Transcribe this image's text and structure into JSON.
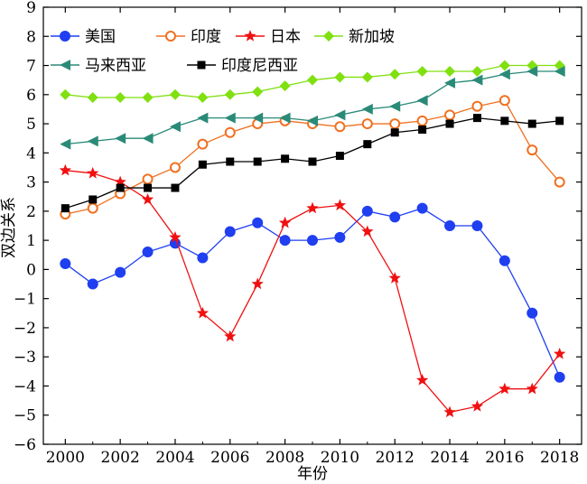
{
  "chart_data": {
    "type": "line",
    "title": "",
    "xlabel": "年份",
    "ylabel": "双边关系",
    "xlim": [
      1999.2,
      2018.8
    ],
    "ylim": [
      -6,
      9
    ],
    "x_ticks": [
      2000,
      2002,
      2004,
      2006,
      2008,
      2010,
      2012,
      2014,
      2016,
      2018
    ],
    "y_ticks": [
      -6,
      -5,
      -4,
      -3,
      -2,
      -1,
      0,
      1,
      2,
      3,
      4,
      5,
      6,
      7,
      8,
      9
    ],
    "grid": false,
    "legend": "top-left",
    "x": [
      2000,
      2001,
      2002,
      2003,
      2004,
      2005,
      2006,
      2007,
      2008,
      2009,
      2010,
      2011,
      2012,
      2013,
      2014,
      2015,
      2016,
      2017,
      2018
    ],
    "series": [
      {
        "name": "美国",
        "color": "#1f3ff0",
        "marker": "circle",
        "values": [
          0.2,
          -0.5,
          -0.1,
          0.6,
          0.9,
          0.4,
          1.3,
          1.6,
          1.0,
          1.0,
          1.1,
          2.0,
          1.8,
          2.1,
          1.5,
          1.5,
          0.3,
          -1.5,
          -3.7
        ]
      },
      {
        "name": "印度",
        "color": "#f07020",
        "marker": "circle-open",
        "values": [
          1.9,
          2.1,
          2.6,
          3.1,
          3.5,
          4.3,
          4.7,
          5.0,
          5.1,
          5.0,
          4.9,
          5.0,
          5.0,
          5.1,
          5.3,
          5.6,
          5.8,
          4.1,
          3.0
        ]
      },
      {
        "name": "日本",
        "color": "#f01010",
        "marker": "star",
        "values": [
          3.4,
          3.3,
          3.0,
          2.4,
          1.1,
          -1.5,
          -2.3,
          -0.5,
          1.6,
          2.1,
          2.2,
          1.3,
          -0.3,
          -3.8,
          -4.9,
          -4.7,
          -4.1,
          -4.1,
          -2.9
        ]
      },
      {
        "name": "新加坡",
        "color": "#80e010",
        "marker": "diamond",
        "values": [
          6.0,
          5.9,
          5.9,
          5.9,
          6.0,
          5.9,
          6.0,
          6.1,
          6.3,
          6.5,
          6.6,
          6.6,
          6.7,
          6.8,
          6.8,
          6.8,
          7.0,
          7.0,
          7.0
        ]
      },
      {
        "name": "马来西亚",
        "color": "#2a8a78",
        "marker": "triangle-left",
        "values": [
          4.3,
          4.4,
          4.5,
          4.5,
          4.9,
          5.2,
          5.2,
          5.2,
          5.2,
          5.1,
          5.3,
          5.5,
          5.6,
          5.8,
          6.4,
          6.5,
          6.7,
          6.8,
          6.8
        ]
      },
      {
        "name": "印度尼西亚",
        "color": "#000000",
        "marker": "square",
        "values": [
          2.1,
          2.4,
          2.8,
          2.8,
          2.8,
          3.6,
          3.7,
          3.7,
          3.8,
          3.7,
          3.9,
          4.3,
          4.7,
          4.8,
          5.0,
          5.2,
          5.1,
          5.0,
          5.1
        ]
      }
    ]
  }
}
